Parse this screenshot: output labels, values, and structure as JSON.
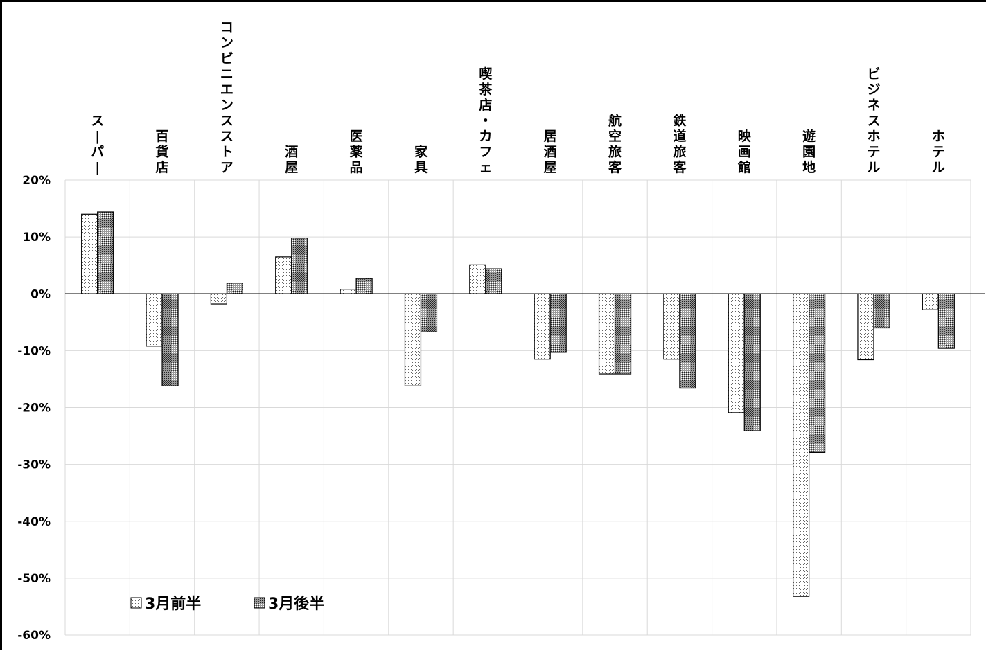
{
  "chart_data": {
    "type": "bar",
    "categories": [
      "スーパー",
      "百貨店",
      "コンビニエンスストア",
      "酒屋",
      "医薬品",
      "家具",
      "喫茶店・カフェ",
      "居酒屋",
      "航空旅客",
      "鉄道旅客",
      "映画館",
      "遊園地",
      "ビジネスホテル",
      "ホテル"
    ],
    "series": [
      {
        "name": "3月前半",
        "pattern": "light-dots",
        "values": [
          14,
          -9.2,
          -1.8,
          6.5,
          0.8,
          -16.2,
          5.1,
          -11.5,
          -14.1,
          -11.5,
          -20.9,
          -53.2,
          -11.6,
          -2.8
        ]
      },
      {
        "name": "3月後半",
        "pattern": "dense-dots",
        "values": [
          14.4,
          -16.2,
          1.9,
          9.8,
          2.7,
          -6.7,
          4.4,
          -10.3,
          -14.1,
          -16.6,
          -24.1,
          -27.9,
          -6,
          -9.6
        ]
      }
    ],
    "y_ticks": [
      "20%",
      "10%",
      "0%",
      "-10%",
      "-20%",
      "-30%",
      "-40%",
      "-50%",
      "-60%"
    ],
    "ylim": [
      -60,
      20
    ],
    "grid": true,
    "legend_position": "bottom-left",
    "title": "",
    "xlabel": "",
    "ylabel": ""
  }
}
